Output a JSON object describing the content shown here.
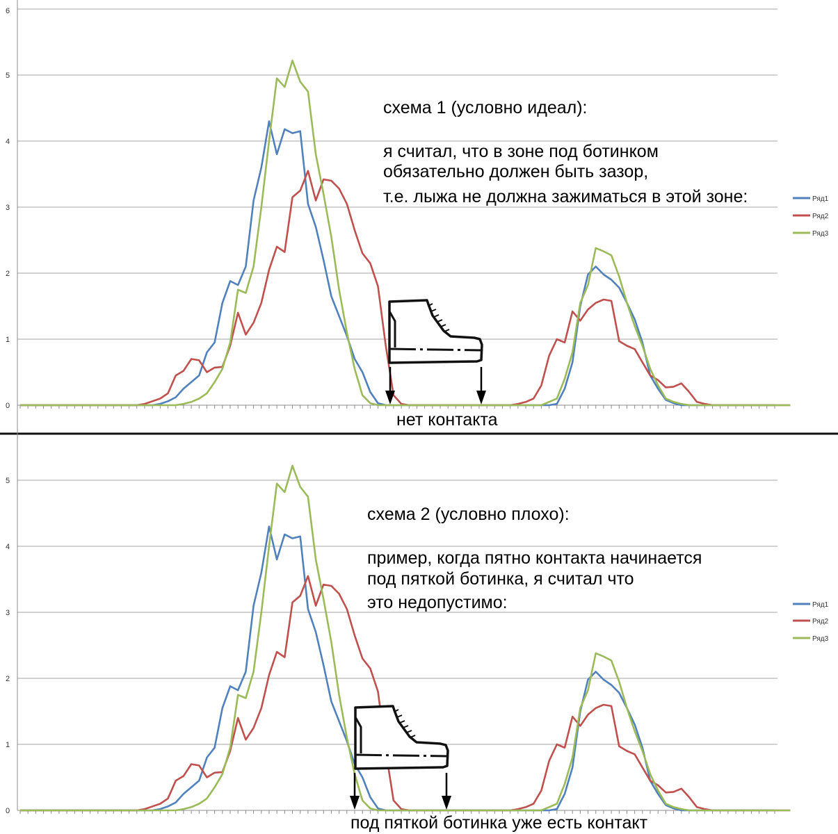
{
  "chart_data": [
    {
      "type": "line",
      "ylim": [
        0,
        6
      ],
      "y_ticks": [
        "0",
        "1",
        "2",
        "3",
        "4",
        "5",
        "6"
      ],
      "grid": true,
      "legend_position": "right",
      "series": [
        {
          "name": "Ряд1",
          "color": "#4f81bd",
          "values": [
            0,
            0,
            0,
            0,
            0,
            0,
            0,
            0,
            0,
            0,
            0,
            0,
            0,
            0,
            0,
            0,
            0,
            0,
            0.02,
            0.06,
            0.12,
            0.25,
            0.35,
            0.45,
            0.8,
            0.95,
            1.55,
            1.88,
            1.82,
            2.1,
            3.1,
            3.6,
            4.3,
            3.8,
            4.18,
            4.12,
            4.15,
            3.05,
            2.7,
            2.2,
            1.65,
            1.35,
            1.05,
            0.7,
            0.5,
            0.2,
            0.03,
            0,
            0,
            0,
            0,
            0,
            0,
            0,
            0,
            0,
            0,
            0,
            0,
            0,
            0,
            0,
            0,
            0,
            0,
            0,
            0,
            0,
            0,
            0.02,
            0.25,
            0.65,
            1.5,
            1.98,
            2.1,
            1.98,
            1.9,
            1.78,
            1.55,
            1.3,
            0.95,
            0.45,
            0.25,
            0.08,
            0.03,
            0,
            0,
            0,
            0,
            0,
            0,
            0,
            0,
            0,
            0,
            0,
            0,
            0
          ]
        },
        {
          "name": "Ряд2",
          "color": "#c0504d",
          "values": [
            0,
            0,
            0,
            0,
            0,
            0,
            0,
            0,
            0,
            0,
            0,
            0,
            0,
            0,
            0,
            0,
            0.02,
            0.06,
            0.1,
            0.18,
            0.45,
            0.52,
            0.7,
            0.68,
            0.5,
            0.57,
            0.58,
            0.9,
            1.4,
            1.07,
            1.25,
            1.55,
            2.05,
            2.4,
            2.32,
            3.15,
            3.25,
            3.55,
            3.1,
            3.42,
            3.4,
            3.28,
            3.05,
            2.65,
            2.3,
            2.15,
            1.8,
            0.9,
            0.15,
            0.02,
            0,
            0,
            0,
            0,
            0,
            0,
            0,
            0,
            0,
            0,
            0,
            0,
            0,
            0,
            0.02,
            0.05,
            0.1,
            0.3,
            0.75,
            1.0,
            0.95,
            1.42,
            1.28,
            1.45,
            1.55,
            1.6,
            1.58,
            0.97,
            0.9,
            0.85,
            0.65,
            0.45,
            0.38,
            0.27,
            0.28,
            0.33,
            0.2,
            0.05,
            0.02,
            0,
            0,
            0,
            0,
            0,
            0,
            0,
            0,
            0,
            0,
            0
          ]
        },
        {
          "name": "Ряд3",
          "color": "#9bbb59",
          "values": [
            0,
            0,
            0,
            0,
            0,
            0,
            0,
            0,
            0,
            0,
            0,
            0,
            0,
            0,
            0,
            0,
            0,
            0,
            0,
            0,
            0,
            0.02,
            0.05,
            0.1,
            0.18,
            0.35,
            0.55,
            0.95,
            1.75,
            1.7,
            2.1,
            3.0,
            4.0,
            4.95,
            4.82,
            5.22,
            4.9,
            4.75,
            3.8,
            3.2,
            2.55,
            1.75,
            1.1,
            0.55,
            0.15,
            0.03,
            0,
            0,
            0,
            0,
            0,
            0,
            0,
            0,
            0,
            0,
            0,
            0,
            0,
            0,
            0,
            0,
            0,
            0,
            0,
            0,
            0,
            0,
            0.05,
            0.1,
            0.4,
            0.8,
            1.55,
            1.82,
            2.38,
            2.33,
            2.27,
            1.95,
            1.55,
            1.2,
            0.9,
            0.55,
            0.3,
            0.1,
            0.05,
            0.02,
            0,
            0,
            0,
            0,
            0,
            0,
            0,
            0,
            0,
            0,
            0,
            0,
            0,
            0
          ]
        }
      ],
      "annotation": {
        "title": "схема 1 (условно идеал):",
        "lines": [
          "я считал, что в зоне под ботинком",
          "обязательно должен быть зазор,",
          "т.е. лыжа не должна зажиматься в этой зоне:"
        ]
      },
      "caption": "нет контакта"
    },
    {
      "type": "line",
      "ylim": [
        0,
        6
      ],
      "y_ticks": [
        "0",
        "1",
        "2",
        "3",
        "4",
        "5"
      ],
      "grid": true,
      "legend_position": "right",
      "series_ref": "same as chart 1",
      "series_names": [
        "Ряд1",
        "Ряд2",
        "Ряд3"
      ],
      "annotation": {
        "title": "схема 2 (условно плохо):",
        "lines": [
          "пример, когда пятно контакта начинается",
          "под пяткой ботинка, я считал что",
          "это недопустимо:"
        ]
      },
      "caption": "под пяткой ботинка уже есть контакт"
    }
  ],
  "icons": {
    "boot": "boot-icon",
    "arrow": "arrow-down-icon"
  }
}
